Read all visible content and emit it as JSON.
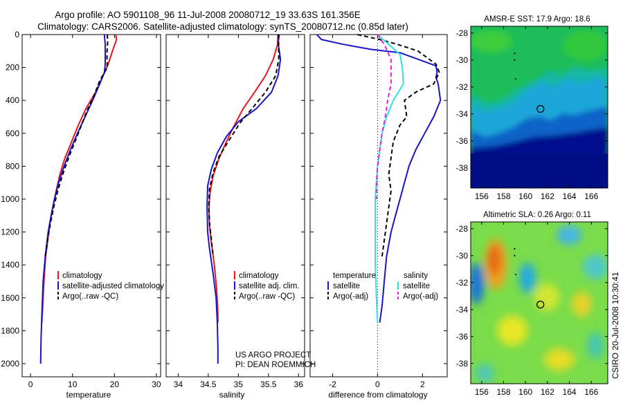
{
  "title": {
    "line1": "Argo profile: AO 5901108_96 11-Jul-2008 20080712_19 33.63S 161.356E",
    "line2": "Climatology: CARS2006. Satellite-adjusted climatology: synTS_20080712.nc (0.85d later)"
  },
  "credit": {
    "line1": "US ARGO PROJECT",
    "line2": "PI: DEAN ROEMMICH"
  },
  "side_stamp": "CSIRO 20-Jul-2008 10:30:41",
  "colors": {
    "red": "#e8141e",
    "blue": "#1414c8",
    "cyan": "#28e6e6",
    "magenta": "#e61ee6",
    "black": "#000000"
  },
  "chart_data": [
    {
      "id": "temperature",
      "type": "line",
      "xlabel": "temperature",
      "ylabel": "",
      "xlim": [
        -2,
        31
      ],
      "ylim": [
        2080,
        0
      ],
      "xticks": [
        "0",
        "10",
        "20",
        "30"
      ],
      "yticks": [
        "0",
        "200",
        "400",
        "600",
        "800",
        "1000",
        "1200",
        "1400",
        "1600",
        "1800",
        "2000"
      ],
      "legend": {
        "entries": [
          "climatology",
          "satellite-adjusted climatology",
          "Argo(..raw -QC)"
        ]
      },
      "series": [
        {
          "name": "climatology",
          "color": "red",
          "dash": false,
          "points": [
            [
              20.3,
              0
            ],
            [
              20.5,
              30
            ],
            [
              19.8,
              80
            ],
            [
              18.5,
              180
            ],
            [
              17.3,
              250
            ],
            [
              15.5,
              350
            ],
            [
              13.2,
              450
            ],
            [
              11.4,
              550
            ],
            [
              9.8,
              650
            ],
            [
              8.2,
              750
            ],
            [
              7.0,
              850
            ],
            [
              6.1,
              950
            ],
            [
              5.3,
              1050
            ],
            [
              4.6,
              1150
            ],
            [
              4.1,
              1250
            ],
            [
              3.6,
              1350
            ],
            [
              3.2,
              1500
            ],
            [
              2.9,
              1650
            ],
            [
              2.7,
              1750
            ]
          ]
        },
        {
          "name": "satellite-adjusted climatology",
          "color": "blue",
          "dash": false,
          "points": [
            [
              17.6,
              0
            ],
            [
              17.8,
              60
            ],
            [
              17.8,
              180
            ],
            [
              17.6,
              230
            ],
            [
              16.5,
              300
            ],
            [
              14.8,
              400
            ],
            [
              13.0,
              500
            ],
            [
              11.2,
              600
            ],
            [
              9.5,
              700
            ],
            [
              8.0,
              800
            ],
            [
              6.7,
              900
            ],
            [
              5.7,
              1000
            ],
            [
              4.9,
              1100
            ],
            [
              4.2,
              1200
            ],
            [
              3.5,
              1350
            ],
            [
              3.0,
              1500
            ],
            [
              2.7,
              1700
            ],
            [
              2.5,
              1850
            ],
            [
              2.4,
              2000
            ]
          ]
        },
        {
          "name": "Argo(..raw -QC)",
          "color": "black",
          "dash": true,
          "points": [
            [
              18.3,
              0
            ],
            [
              18.4,
              40
            ],
            [
              18.2,
              120
            ],
            [
              18.3,
              200
            ],
            [
              16.5,
              280
            ],
            [
              15.0,
              380
            ],
            [
              13.5,
              460
            ],
            [
              12.0,
              560
            ],
            [
              10.6,
              650
            ],
            [
              9.2,
              740
            ],
            [
              7.8,
              840
            ],
            [
              6.6,
              940
            ],
            [
              5.6,
              1040
            ],
            [
              4.8,
              1140
            ],
            [
              4.1,
              1240
            ],
            [
              3.5,
              1350
            ]
          ]
        }
      ]
    },
    {
      "id": "salinity",
      "type": "line",
      "xlabel": "salinity",
      "ylabel": "",
      "xlim": [
        33.8,
        36.1
      ],
      "ylim": [
        2080,
        0
      ],
      "xticks": [
        "34",
        "34.5",
        "35",
        "35.5",
        "36"
      ],
      "yticks": [],
      "legend": {
        "entries": [
          "climatology",
          "satellite adj. clim.",
          "Argo(..raw -QC)"
        ]
      },
      "series": [
        {
          "name": "climatology",
          "color": "red",
          "dash": false,
          "points": [
            [
              35.66,
              0
            ],
            [
              35.65,
              60
            ],
            [
              35.58,
              150
            ],
            [
              35.45,
              250
            ],
            [
              35.27,
              350
            ],
            [
              35.08,
              450
            ],
            [
              34.92,
              560
            ],
            [
              34.79,
              660
            ],
            [
              34.67,
              760
            ],
            [
              34.58,
              860
            ],
            [
              34.53,
              960
            ],
            [
              34.51,
              1060
            ],
            [
              34.52,
              1160
            ],
            [
              34.55,
              1260
            ],
            [
              34.6,
              1400
            ],
            [
              34.64,
              1550
            ],
            [
              34.66,
              1700
            ],
            [
              34.66,
              1750
            ]
          ]
        },
        {
          "name": "satellite adj. clim.",
          "color": "blue",
          "dash": false,
          "points": [
            [
              35.68,
              0
            ],
            [
              35.66,
              50
            ],
            [
              35.7,
              150
            ],
            [
              35.66,
              250
            ],
            [
              35.55,
              350
            ],
            [
              35.3,
              450
            ],
            [
              35.0,
              530
            ],
            [
              34.8,
              620
            ],
            [
              34.65,
              720
            ],
            [
              34.55,
              820
            ],
            [
              34.49,
              920
            ],
            [
              34.48,
              1050
            ],
            [
              34.49,
              1200
            ],
            [
              34.52,
              1300
            ],
            [
              34.58,
              1450
            ],
            [
              34.63,
              1600
            ],
            [
              34.65,
              1750
            ],
            [
              34.66,
              1900
            ],
            [
              34.66,
              2000
            ]
          ]
        },
        {
          "name": "Argo(..raw -QC)",
          "color": "black",
          "dash": true,
          "points": [
            [
              35.66,
              0
            ],
            [
              35.67,
              60
            ],
            [
              35.67,
              150
            ],
            [
              35.62,
              250
            ],
            [
              35.45,
              350
            ],
            [
              35.25,
              440
            ],
            [
              35.02,
              540
            ],
            [
              34.85,
              640
            ],
            [
              34.68,
              740
            ],
            [
              34.58,
              840
            ],
            [
              34.52,
              940
            ],
            [
              34.51,
              1040
            ],
            [
              34.52,
              1140
            ],
            [
              34.55,
              1240
            ],
            [
              34.58,
              1340
            ]
          ]
        }
      ]
    },
    {
      "id": "difference",
      "type": "line",
      "xlabel": "difference from climatology",
      "ylabel": "",
      "xlim": [
        -3,
        3.1
      ],
      "ylim": [
        2080,
        0
      ],
      "xticks": [
        "-2",
        "0",
        "2"
      ],
      "yticks": [],
      "zero_line": true,
      "legend": {
        "temperature_title": "temperature",
        "salinity_title": "salinity",
        "temperature_entries": [
          "satellite",
          "Argo(-adj)"
        ],
        "salinity_entries": [
          "satellite",
          "Argo(-adj)"
        ]
      },
      "series": [
        {
          "name": "satellite",
          "group": "temperature",
          "color": "blue",
          "dash": false,
          "points": [
            [
              -2.7,
              0
            ],
            [
              -2.5,
              30
            ],
            [
              -1.5,
              60
            ],
            [
              -0.3,
              90
            ],
            [
              1.0,
              110
            ],
            [
              2.6,
              190
            ],
            [
              2.65,
              230
            ],
            [
              2.6,
              260
            ],
            [
              2.7,
              300
            ],
            [
              2.8,
              400
            ],
            [
              2.5,
              500
            ],
            [
              2.1,
              600
            ],
            [
              1.7,
              700
            ],
            [
              1.4,
              800
            ],
            [
              1.2,
              900
            ],
            [
              1.0,
              1000
            ],
            [
              0.8,
              1100
            ],
            [
              0.6,
              1200
            ],
            [
              0.4,
              1350
            ],
            [
              0.3,
              1500
            ],
            [
              0.2,
              1650
            ],
            [
              0.1,
              1750
            ]
          ]
        },
        {
          "name": "Argo(-adj)",
          "group": "temperature",
          "color": "black",
          "dash": true,
          "points": [
            [
              -0.9,
              0
            ],
            [
              0.1,
              30
            ],
            [
              0.9,
              60
            ],
            [
              1.8,
              100
            ],
            [
              2.6,
              180
            ],
            [
              2.75,
              230
            ],
            [
              2.5,
              300
            ],
            [
              1.7,
              350
            ],
            [
              1.2,
              400
            ],
            [
              1.3,
              500
            ],
            [
              1.0,
              550
            ],
            [
              0.7,
              650
            ],
            [
              0.6,
              750
            ],
            [
              0.5,
              850
            ],
            [
              0.6,
              950
            ],
            [
              0.5,
              1050
            ],
            [
              0.4,
              1150
            ],
            [
              0.3,
              1250
            ],
            [
              0.2,
              1350
            ]
          ]
        },
        {
          "name": "satellite",
          "group": "salinity",
          "color": "cyan",
          "dash": false,
          "points": [
            [
              0.0,
              0
            ],
            [
              0.5,
              60
            ],
            [
              1.0,
              120
            ],
            [
              1.1,
              200
            ],
            [
              1.15,
              300
            ],
            [
              0.7,
              400
            ],
            [
              0.4,
              500
            ],
            [
              0.2,
              600
            ],
            [
              0.1,
              700
            ],
            [
              0.0,
              800
            ],
            [
              -0.05,
              900
            ],
            [
              -0.1,
              1000
            ],
            [
              -0.1,
              1200
            ],
            [
              -0.1,
              1400
            ],
            [
              -0.05,
              1600
            ],
            [
              0.0,
              1750
            ]
          ]
        },
        {
          "name": "Argo(-adj)",
          "group": "salinity",
          "color": "magenta",
          "dash": true,
          "points": [
            [
              0.0,
              0
            ],
            [
              0.3,
              60
            ],
            [
              0.6,
              150
            ],
            [
              0.6,
              300
            ],
            [
              0.45,
              400
            ],
            [
              0.35,
              500
            ],
            [
              0.2,
              600
            ],
            [
              0.1,
              700
            ],
            [
              0.0,
              800
            ],
            [
              -0.05,
              900
            ],
            [
              -0.05,
              1000
            ]
          ]
        }
      ]
    },
    {
      "id": "sst_map",
      "type": "heatmap",
      "title": "AMSR-E SST: 17.9 Argo: 18.6",
      "xticks": [
        "156",
        "158",
        "160",
        "162",
        "164",
        "166"
      ],
      "yticks": [
        "-28",
        "-30",
        "-32",
        "-34",
        "-36",
        "-38"
      ],
      "xlim": [
        155,
        167.5
      ],
      "ylim": [
        -39.5,
        -27.5
      ],
      "marker": {
        "lon": 161.356,
        "lat": -33.63
      }
    },
    {
      "id": "sla_map",
      "type": "heatmap",
      "title": "Altimetric SLA: 0.26 Argo: 0.11",
      "xticks": [
        "156",
        "158",
        "160",
        "162",
        "164",
        "166"
      ],
      "yticks": [
        "-28",
        "-30",
        "-32",
        "-34",
        "-36",
        "-38"
      ],
      "xlim": [
        155,
        167.5
      ],
      "ylim": [
        -39.5,
        -27.5
      ],
      "marker": {
        "lon": 161.356,
        "lat": -33.63
      }
    }
  ]
}
